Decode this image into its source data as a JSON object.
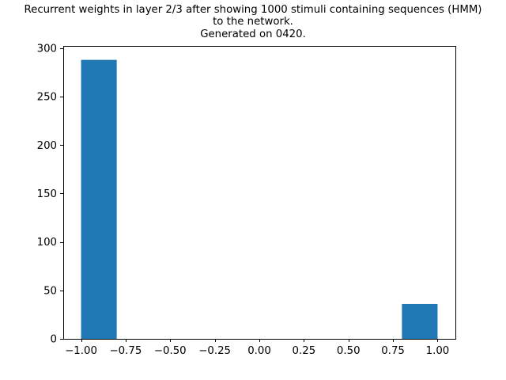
{
  "chart_data": {
    "type": "bar",
    "title_lines": [
      "Recurrent weights in layer 2/3 after showing 1000 stimuli containing sequences (HMM)",
      "to the network.",
      "Generated on 0420."
    ],
    "xlabel": "",
    "ylabel": "",
    "bins": [
      {
        "x0": -1.0,
        "x1": -0.8,
        "count": 288
      },
      {
        "x0": -0.8,
        "x1": -0.6,
        "count": 0
      },
      {
        "x0": -0.6,
        "x1": -0.4,
        "count": 0
      },
      {
        "x0": -0.4,
        "x1": -0.2,
        "count": 0
      },
      {
        "x0": -0.2,
        "x1": 0.0,
        "count": 0
      },
      {
        "x0": 0.0,
        "x1": 0.2,
        "count": 0
      },
      {
        "x0": 0.2,
        "x1": 0.4,
        "count": 0
      },
      {
        "x0": 0.4,
        "x1": 0.6,
        "count": 0
      },
      {
        "x0": 0.6,
        "x1": 0.8,
        "count": 0
      },
      {
        "x0": 0.8,
        "x1": 1.0,
        "count": 36
      }
    ],
    "xlim": [
      -1.1,
      1.1
    ],
    "ylim": [
      0,
      302.4
    ],
    "xticks": [
      -1.0,
      -0.75,
      -0.5,
      -0.25,
      0.0,
      0.25,
      0.5,
      0.75,
      1.0
    ],
    "xtick_labels": [
      "−1.00",
      "−0.75",
      "−0.50",
      "−0.25",
      "0.00",
      "0.25",
      "0.50",
      "0.75",
      "1.00"
    ],
    "yticks": [
      0,
      50,
      100,
      150,
      200,
      250,
      300
    ],
    "ytick_labels": [
      "0",
      "50",
      "100",
      "150",
      "200",
      "250",
      "300"
    ],
    "bar_color": "#1f77b4",
    "grid": false
  }
}
